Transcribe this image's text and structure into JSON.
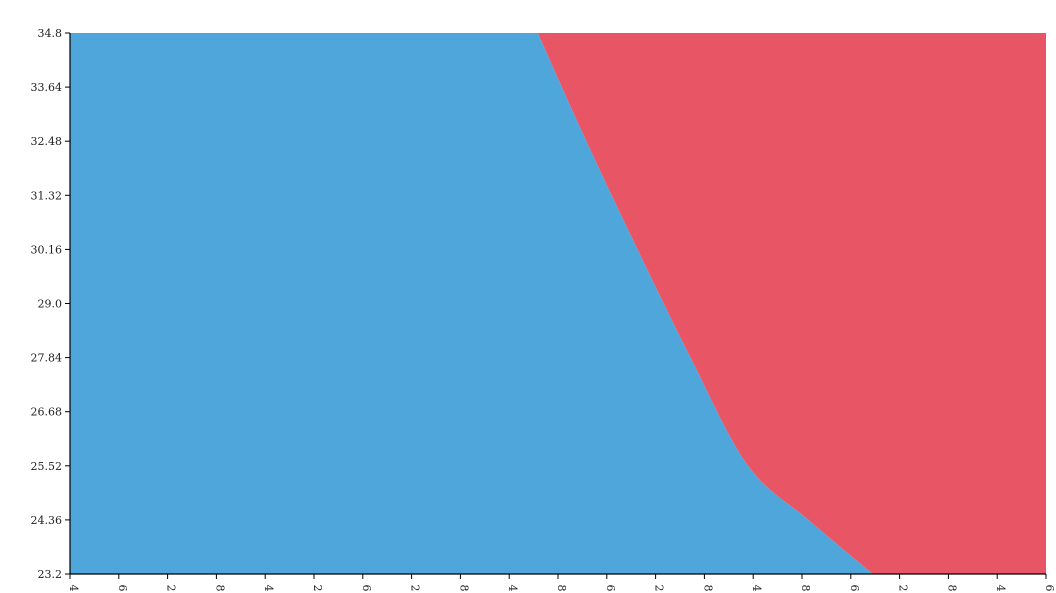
{
  "chart_data": {
    "type": "area",
    "title": "",
    "xlabel": "",
    "ylabel": "",
    "grid": false,
    "legend": "none",
    "ylim": [
      23.2,
      34.8
    ],
    "y_ticks": [
      "23.2",
      "24.36",
      "25.52",
      "26.68",
      "27.84",
      "29.0",
      "30.16",
      "31.32",
      "32.48",
      "33.64",
      "34.8"
    ],
    "x_tick_labels": [
      "4",
      "6",
      "2",
      "8",
      "4",
      "2",
      "6",
      "2",
      "8",
      "4",
      "8",
      "6",
      "2",
      "8",
      "4",
      "8",
      "6",
      "2",
      "8",
      "4",
      "6"
    ],
    "boundary_curve": {
      "x_fraction_of_width": [
        0.4793,
        0.5291,
        0.5815,
        0.6358,
        0.6947,
        0.7566,
        0.8226
      ],
      "y": [
        34.8,
        32.48,
        30.16,
        27.84,
        25.52,
        24.36,
        23.2
      ]
    },
    "regions": [
      {
        "side": "left",
        "color": "#4fa6da"
      },
      {
        "side": "right",
        "color": "#e85666"
      }
    ]
  }
}
